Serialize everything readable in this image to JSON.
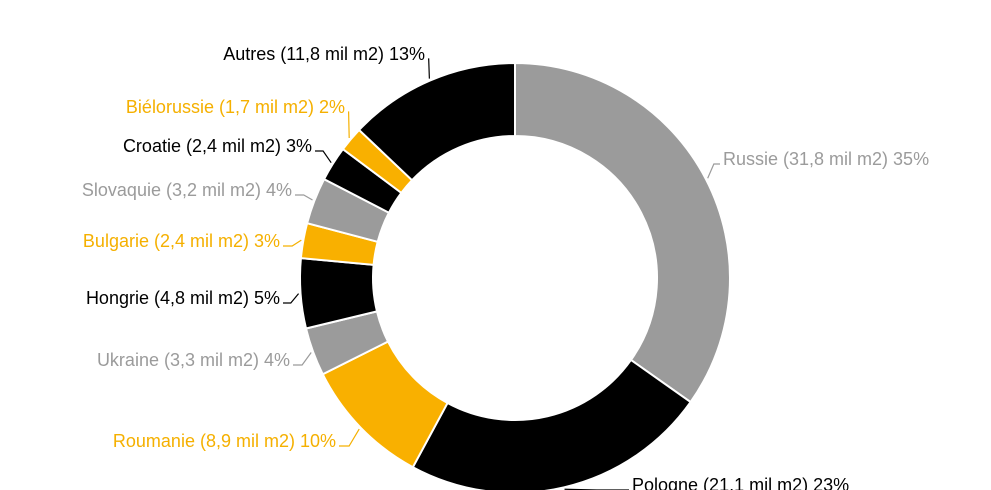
{
  "chart_data": {
    "type": "donut",
    "values": [
      31.8,
      21.1,
      8.9,
      3.3,
      4.8,
      2.4,
      3.2,
      2.4,
      1.7,
      11.8
    ],
    "value_labels": [
      "Russie (31,8 mil m2) 35%",
      "Pologne (21,1 mil m2) 23%",
      "Roumanie (8,9 mil m2) 10%",
      "Ukraine (3,3 mil m2) 4%",
      "Hongrie (4,8 mil m2) 5%",
      "Bulgarie (2,4 mil m2) 3%",
      "Slovaquie (3,2 mil m2) 4%",
      "Croatie (2,4 mil m2) 3%",
      "Biélorussie (1,7 mil m2) 2%",
      "Autres (11,8 mil m2) 13%"
    ],
    "colors": [
      "#9b9b9b",
      "#000000",
      "#f9b000",
      "#9b9b9b",
      "#000000",
      "#f9b000",
      "#9b9b9b",
      "#000000",
      "#f9b000",
      "#000000"
    ],
    "label_colors": [
      "#9b9b9b",
      "#000000",
      "#f5b000",
      "#9b9b9b",
      "#000000",
      "#f5b000",
      "#9b9b9b",
      "#000000",
      "#f5b000",
      "#000000"
    ]
  }
}
